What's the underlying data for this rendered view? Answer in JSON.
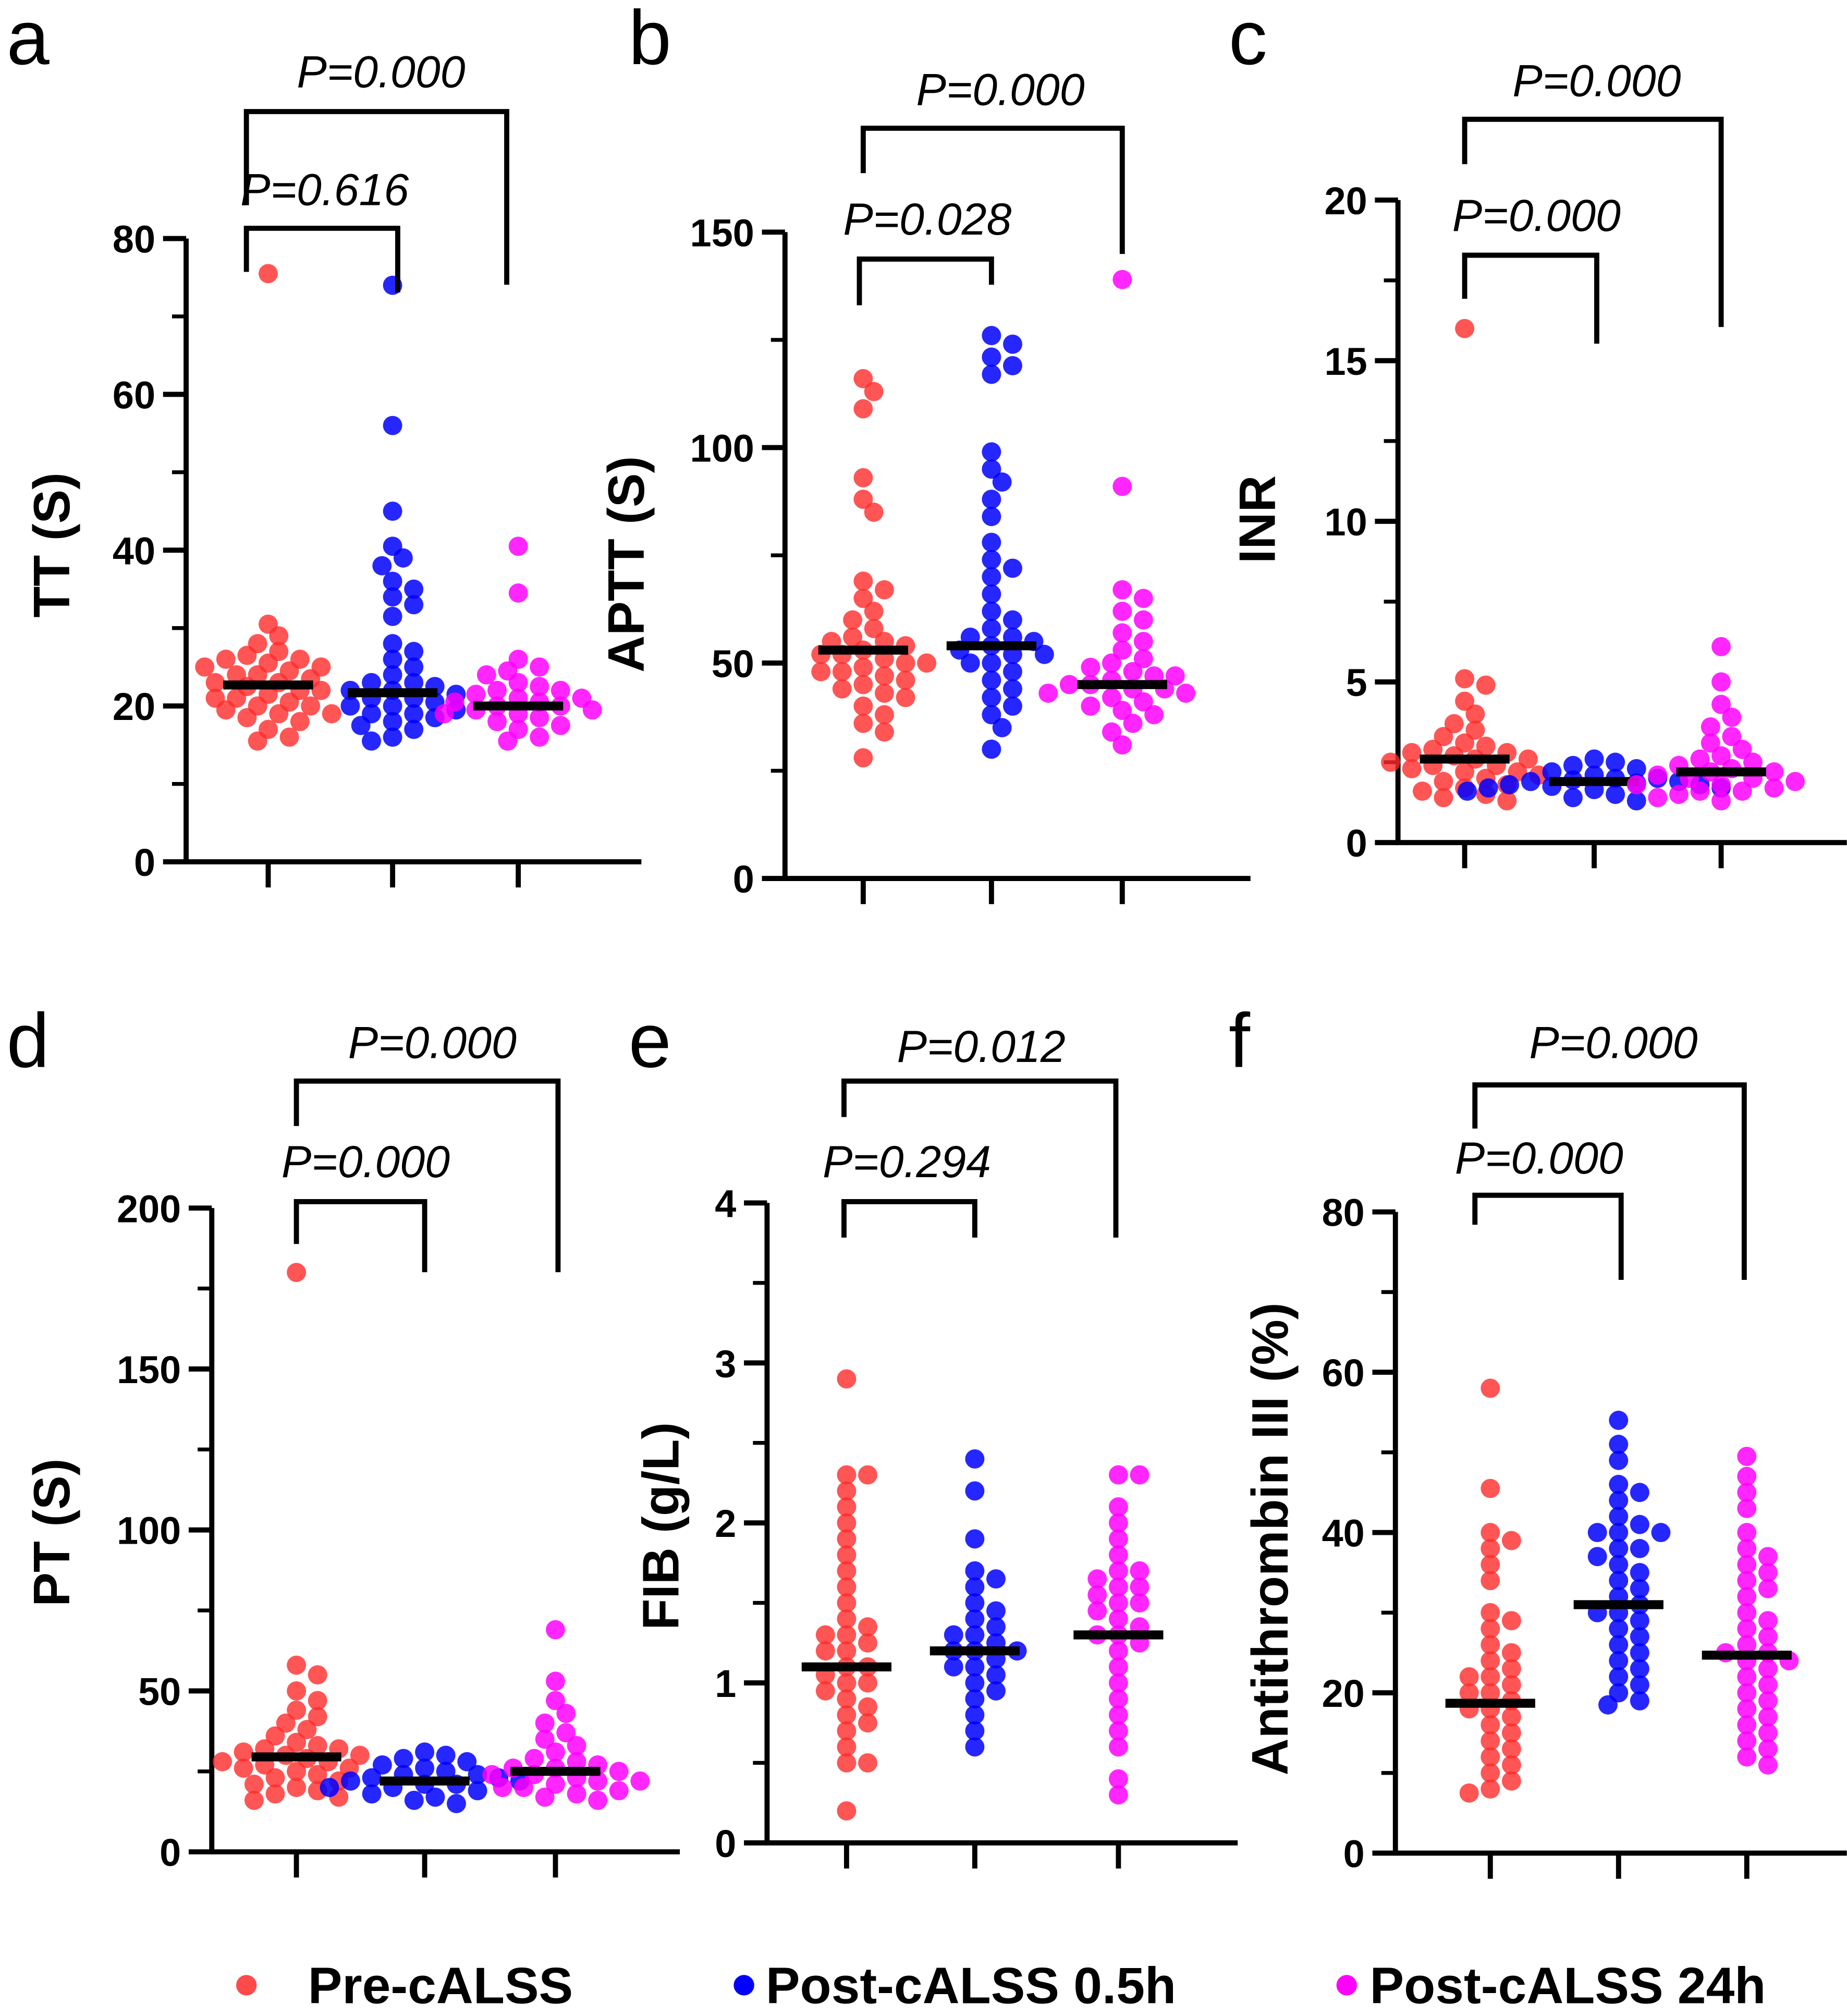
{
  "legend": [
    {
      "label": "Pre-cALSS",
      "color": "#ff2a2a"
    },
    {
      "label": "Post-cALSS 0.5h",
      "color": "#0000ff"
    },
    {
      "label": "Post-cALSS 24h",
      "color": "#ff00ff"
    }
  ],
  "chart_data": [
    {
      "panel": "a",
      "type": "scatter",
      "ylabel": "TT (S)",
      "ylim": [
        0,
        80
      ],
      "yticks": [
        "0",
        "20",
        "40",
        "60",
        "80"
      ],
      "medians": [
        22.7,
        21.7,
        20.0
      ],
      "comparisons": [
        {
          "groups": [
            1,
            2
          ],
          "label": "P=0.616"
        },
        {
          "groups": [
            1,
            3
          ],
          "label": "P=0.000"
        }
      ],
      "groups": [
        [
          75.5,
          30.5,
          29,
          28,
          27,
          26.5,
          26,
          25.5,
          25,
          24.5,
          24,
          23.5,
          23,
          22.5,
          22,
          21.5,
          21,
          20.5,
          20,
          19.5,
          19,
          18.5,
          18,
          17,
          16,
          15.5,
          23,
          24,
          22,
          21,
          25,
          20,
          26,
          19
        ],
        [
          74,
          56,
          45,
          40.5,
          39,
          38,
          36,
          35,
          34,
          33,
          31.5,
          28,
          27,
          26,
          25,
          24,
          23,
          22.5,
          22,
          21.5,
          21,
          20.5,
          20,
          19.5,
          19,
          18.5,
          18,
          17.5,
          17,
          16,
          15.5,
          22,
          21,
          23,
          20,
          19
        ],
        [
          40.5,
          34.5,
          26,
          25,
          24.5,
          24,
          23,
          22.5,
          22,
          21.5,
          21,
          20.5,
          20,
          19.5,
          19,
          18.5,
          18,
          17.5,
          17,
          16,
          15.5,
          21,
          20,
          19,
          22,
          20.5,
          19.5
        ]
      ]
    },
    {
      "panel": "b",
      "type": "scatter",
      "ylabel": "APTT (S)",
      "ylim": [
        0,
        150
      ],
      "yticks": [
        "0",
        "50",
        "100",
        "150"
      ],
      "medians": [
        53,
        54,
        45
      ],
      "comparisons": [
        {
          "groups": [
            1,
            2
          ],
          "label": "P=0.028"
        },
        {
          "groups": [
            1,
            3
          ],
          "label": "P=0.000"
        }
      ],
      "groups": [
        [
          116,
          113,
          109,
          93,
          88,
          85,
          69,
          67,
          65,
          62,
          60,
          58,
          56,
          55,
          54,
          53,
          52,
          51,
          50,
          49,
          48,
          47,
          46,
          45,
          44,
          43,
          42,
          40,
          38,
          36,
          34,
          28,
          52,
          50,
          55,
          48
        ],
        [
          126,
          124,
          121,
          119,
          117,
          99,
          95,
          92,
          88,
          84,
          78,
          74,
          72,
          70,
          66,
          62,
          60,
          58,
          56,
          55,
          54,
          53,
          52,
          50,
          48,
          46,
          44,
          42,
          40,
          38,
          35,
          30,
          52,
          50,
          56
        ],
        [
          139,
          91,
          67,
          65,
          62,
          60,
          57,
          55,
          53,
          51,
          50,
          49,
          48,
          47,
          46,
          45,
          44,
          43,
          42,
          41,
          40,
          39,
          38,
          36,
          34,
          31,
          45,
          47,
          44,
          43
        ]
      ]
    },
    {
      "panel": "c",
      "type": "scatter",
      "ylabel": "INR",
      "ylim": [
        0,
        20
      ],
      "yticks": [
        "0",
        "5",
        "10",
        "15",
        "20"
      ],
      "medians": [
        2.6,
        1.9,
        2.2
      ],
      "comparisons": [
        {
          "groups": [
            1,
            2
          ],
          "label": "P=0.000"
        },
        {
          "groups": [
            1,
            3
          ],
          "label": "P=0.000"
        }
      ],
      "groups": [
        [
          16,
          5.1,
          4.9,
          4.4,
          4.0,
          3.7,
          3.5,
          3.3,
          3.1,
          3.0,
          2.9,
          2.8,
          2.7,
          2.6,
          2.5,
          2.4,
          2.3,
          2.2,
          2.1,
          2.0,
          1.9,
          1.8,
          1.7,
          1.6,
          1.5,
          1.4,
          1.3,
          2.6,
          2.4,
          2.2,
          2.8
        ],
        [
          2.6,
          2.5,
          2.4,
          2.3,
          2.2,
          2.1,
          2.0,
          1.95,
          1.9,
          1.85,
          1.8,
          1.75,
          1.7,
          1.65,
          1.6,
          1.5,
          1.4,
          1.3,
          1.9,
          1.8,
          2.0,
          1.7
        ],
        [
          6.1,
          5.0,
          4.3,
          3.9,
          3.6,
          3.3,
          3.1,
          2.9,
          2.7,
          2.6,
          2.5,
          2.4,
          2.3,
          2.2,
          2.1,
          2.0,
          1.9,
          1.8,
          1.7,
          1.6,
          1.5,
          1.4,
          1.3,
          2.0,
          1.8,
          1.6,
          2.2
        ]
      ]
    },
    {
      "panel": "d",
      "type": "scatter",
      "ylabel": "PT (S)",
      "ylim": [
        0,
        200
      ],
      "yticks": [
        "0",
        "50",
        "100",
        "150",
        "200"
      ],
      "medians": [
        29.5,
        22,
        25
      ],
      "comparisons": [
        {
          "groups": [
            1,
            2
          ],
          "label": "P=0.000"
        },
        {
          "groups": [
            1,
            3
          ],
          "label": "P=0.000"
        }
      ],
      "groups": [
        [
          180,
          58,
          55,
          50,
          47,
          44,
          42,
          40,
          38,
          36,
          34,
          33,
          32,
          31,
          30,
          29,
          28,
          27,
          26,
          25,
          24,
          23,
          22,
          21,
          20,
          19,
          18,
          17,
          16,
          30,
          28,
          26,
          32
        ],
        [
          31,
          30,
          29,
          28,
          27,
          26,
          25,
          24,
          23,
          22,
          21,
          20,
          19,
          18,
          17,
          16,
          15,
          22,
          21,
          23,
          20,
          24
        ],
        [
          69,
          53,
          47,
          43,
          40,
          37,
          35,
          33,
          31,
          29,
          28,
          27,
          26,
          25,
          24,
          23,
          22,
          21,
          20,
          19,
          18,
          17,
          16,
          24,
          22,
          20,
          26
        ]
      ]
    },
    {
      "panel": "e",
      "type": "scatter",
      "ylabel": "FIB (g/L)",
      "ylim": [
        0,
        4
      ],
      "yticks": [
        "0",
        "1",
        "2",
        "3",
        "4"
      ],
      "medians": [
        1.1,
        1.2,
        1.3
      ],
      "comparisons": [
        {
          "groups": [
            1,
            2
          ],
          "label": "P=0.294"
        },
        {
          "groups": [
            1,
            3
          ],
          "label": "P=0.012"
        }
      ],
      "groups": [
        [
          2.9,
          2.3,
          2.3,
          2.2,
          2.1,
          2.0,
          1.9,
          1.8,
          1.7,
          1.6,
          1.5,
          1.4,
          1.35,
          1.3,
          1.25,
          1.2,
          1.1,
          1.05,
          1.0,
          0.95,
          0.9,
          0.85,
          0.8,
          0.75,
          0.7,
          0.6,
          0.5,
          0.5,
          0.2,
          1.1,
          1.2,
          1.3,
          1.0
        ],
        [
          2.4,
          2.2,
          1.9,
          1.7,
          1.65,
          1.6,
          1.5,
          1.45,
          1.4,
          1.35,
          1.3,
          1.25,
          1.2,
          1.15,
          1.1,
          1.05,
          1.0,
          0.95,
          0.9,
          0.8,
          0.7,
          0.6,
          1.2,
          1.3,
          1.1,
          1.2
        ],
        [
          2.3,
          2.3,
          2.1,
          2.0,
          1.9,
          1.8,
          1.7,
          1.7,
          1.65,
          1.6,
          1.55,
          1.5,
          1.45,
          1.4,
          1.35,
          1.3,
          1.25,
          1.2,
          1.1,
          1.0,
          0.9,
          0.8,
          0.7,
          0.6,
          0.4,
          0.3,
          1.3,
          1.5,
          1.6
        ]
      ]
    },
    {
      "panel": "f",
      "type": "scatter",
      "ylabel": "Antithrombin III (%)",
      "ylim": [
        0,
        80
      ],
      "yticks": [
        "0",
        "20",
        "40",
        "60",
        "80"
      ],
      "medians": [
        18.7,
        31,
        24.7
      ],
      "comparisons": [
        {
          "groups": [
            1,
            2
          ],
          "label": "P=0.000"
        },
        {
          "groups": [
            1,
            3
          ],
          "label": "P=0.000"
        }
      ],
      "groups": [
        [
          58,
          45.5,
          40,
          39,
          38,
          36,
          34,
          30,
          29,
          28,
          26,
          25,
          24,
          23,
          22,
          21,
          20,
          19,
          18,
          17,
          16,
          15,
          14,
          13,
          12,
          11,
          10,
          9,
          8,
          7.5,
          20,
          22,
          18
        ],
        [
          54,
          51,
          49,
          46,
          45,
          44,
          42,
          41,
          40,
          40,
          38,
          37,
          36,
          35,
          34,
          33,
          32,
          31,
          30,
          29,
          28,
          27,
          26,
          25,
          24,
          23,
          22,
          21,
          20,
          19,
          18.5,
          40,
          38,
          30
        ],
        [
          49.5,
          47,
          45,
          43,
          40,
          38,
          37,
          36,
          35,
          34,
          33,
          32,
          30,
          29,
          28,
          27,
          26,
          25,
          24,
          23,
          22,
          21,
          20,
          19,
          18,
          17,
          16,
          15,
          14,
          13,
          12,
          11,
          25,
          24
        ]
      ]
    }
  ]
}
